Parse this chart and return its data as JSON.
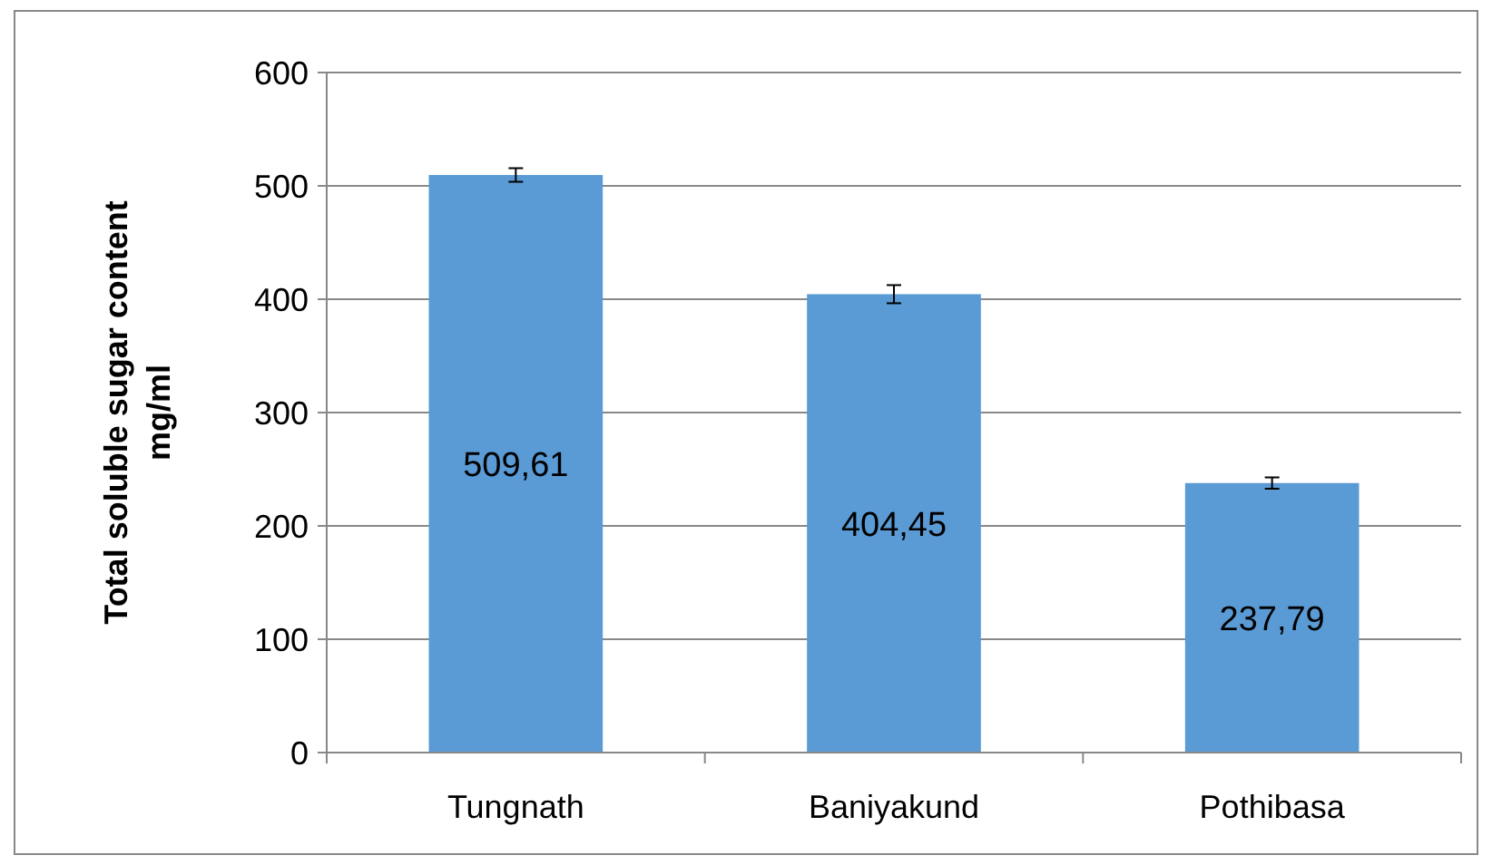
{
  "chart_data": {
    "type": "bar",
    "ylabel": "Total soluble sugar content\nmg/ml",
    "categories": [
      "Tungnath",
      "Baniyakund",
      "Pothibasa"
    ],
    "values": [
      509.61,
      404.45,
      237.79
    ],
    "color": "#5b9bd5",
    "errors": [
      6,
      8,
      5
    ],
    "value_labels": [
      "509,61",
      "404,45",
      "237,79"
    ],
    "ylim": [
      0,
      600
    ],
    "yticks": [
      0,
      100,
      200,
      300,
      400,
      500,
      600
    ],
    "grid": "y"
  }
}
